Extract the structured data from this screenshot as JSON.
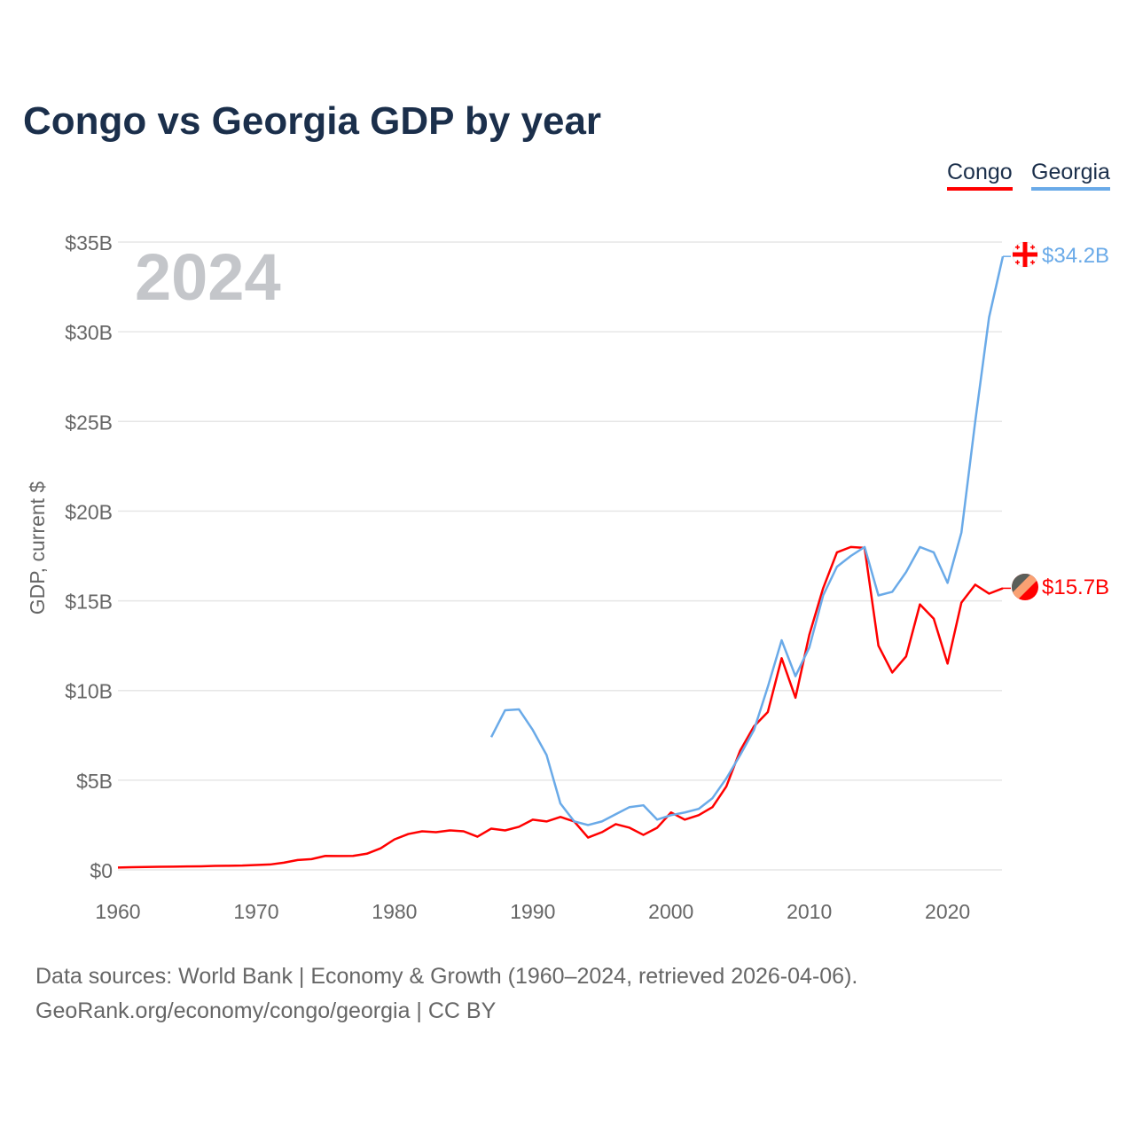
{
  "title": "Congo vs Georgia GDP by year",
  "legend": [
    "Congo",
    "Georgia"
  ],
  "year_watermark": "2024",
  "end_labels": {
    "congo": "$15.7B",
    "georgia": "$34.2B"
  },
  "colors": {
    "congo": "#ff0000",
    "georgia": "#6aaae8"
  },
  "footer": {
    "line1": "Data sources: World Bank | Economy & Growth (1960–2024, retrieved 2026-04-06).",
    "line2": "GeoRank.org/economy/congo/georgia | CC BY"
  },
  "chart_data": {
    "type": "line",
    "title": "Congo vs Georgia GDP by year",
    "xlabel": "",
    "ylabel": "GDP, current $",
    "xlim": [
      1960,
      2024
    ],
    "ylim": [
      0,
      35
    ],
    "x_ticks": [
      1960,
      1970,
      1980,
      1990,
      2000,
      2010,
      2020
    ],
    "y_ticks": [
      0,
      5,
      10,
      15,
      20,
      25,
      30,
      35
    ],
    "y_tick_labels": [
      "$0",
      "$5B",
      "$10B",
      "$15B",
      "$20B",
      "$25B",
      "$30B",
      "$35B"
    ],
    "grid": true,
    "legend_position": "top-right",
    "units": "billion USD",
    "series": [
      {
        "name": "Congo",
        "start_year": 1960,
        "values": [
          0.13,
          0.15,
          0.16,
          0.17,
          0.18,
          0.19,
          0.2,
          0.22,
          0.23,
          0.24,
          0.27,
          0.3,
          0.4,
          0.55,
          0.6,
          0.78,
          0.77,
          0.78,
          0.9,
          1.2,
          1.7,
          2.0,
          2.15,
          2.1,
          2.2,
          2.15,
          1.85,
          2.3,
          2.2,
          2.4,
          2.8,
          2.7,
          2.95,
          2.7,
          1.8,
          2.1,
          2.55,
          2.35,
          1.95,
          2.35,
          3.2,
          2.8,
          3.05,
          3.5,
          4.65,
          6.65,
          8.0,
          8.8,
          11.8,
          9.6,
          13.1,
          15.7,
          17.7,
          18.0,
          17.95,
          12.5,
          11.0,
          11.9,
          14.8,
          14.0,
          11.5,
          14.9,
          15.9,
          15.4,
          15.7
        ]
      },
      {
        "name": "Georgia",
        "start_year": 1987,
        "values": [
          7.4,
          8.9,
          8.95,
          7.8,
          6.4,
          3.7,
          2.7,
          2.5,
          2.7,
          3.1,
          3.5,
          3.6,
          2.8,
          3.05,
          3.2,
          3.4,
          4.0,
          5.1,
          6.4,
          7.8,
          10.2,
          12.8,
          10.8,
          12.4,
          15.3,
          16.9,
          17.5,
          18.0,
          15.3,
          15.5,
          16.6,
          18.0,
          17.7,
          16.0,
          18.8,
          25.0,
          30.8,
          34.2
        ]
      }
    ]
  }
}
